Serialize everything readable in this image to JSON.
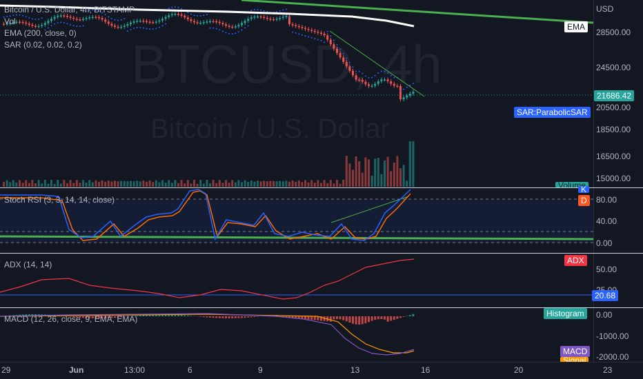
{
  "watermark": {
    "symbol": "BTCUSD, 4h",
    "name": "Bitcoin / U.S. Dollar"
  },
  "main": {
    "title": "Bitcoin / U.S. Dollar, 4h, BITSTAMP",
    "vol_label": "Vol",
    "ema_label": "EMA (200, close, 0)",
    "sar_label": "SAR (0.02, 0.02, 0.2)",
    "currency": "USD",
    "price_ticks": [
      "28500.00",
      "24500.00",
      "20500.00",
      "18500.00",
      "16500.00",
      "15000.00"
    ],
    "last_price": "21686.42",
    "ema_tag": "EMA",
    "sar_tag": "SAR:ParabolicSAR",
    "volume_tag": "Volume"
  },
  "stoch": {
    "label": "Stoch RSI (3, 3, 14, 14, close)",
    "ticks": [
      "80.00",
      "40.00",
      "0.00"
    ],
    "tag_k": "K",
    "tag_d": "D"
  },
  "adx": {
    "label": "ADX (14, 14)",
    "ticks": [
      "50.00",
      "25.00"
    ],
    "tag": "ADX",
    "value": "20.68"
  },
  "macd": {
    "label": "MACD (12, 26, close, 9, EMA, EMA)",
    "ticks": [
      "0.00",
      "-1000.00",
      "-2000.00"
    ],
    "histogram_tag": "Histogram",
    "macd_tag": "MACD",
    "signal_tag": "Signal"
  },
  "x_axis": [
    "29",
    "Jun",
    "13:00",
    "6",
    "9",
    "13",
    "16",
    "20",
    "23"
  ],
  "colors": {
    "up": "#26a69a",
    "down": "#ef5350",
    "ema": "#ffffff",
    "trend": "#4caf50",
    "sar": "#2962ff",
    "stoch_k": "#2962ff",
    "stoch_d": "#ff6d00",
    "adx": "#f23645",
    "macd": "#7e57c2",
    "signal": "#ff9800"
  }
}
